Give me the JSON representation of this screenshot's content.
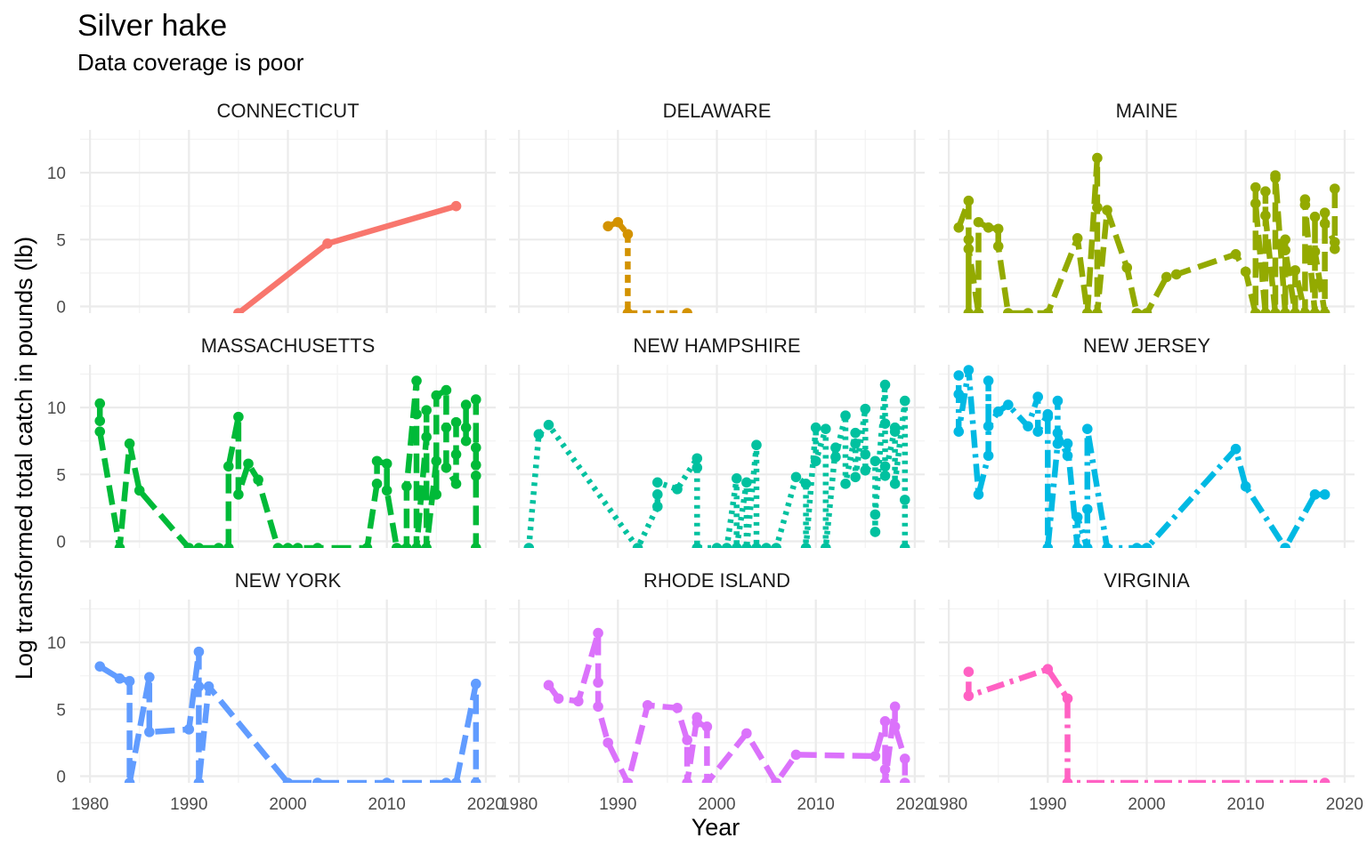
{
  "chart_data": {
    "type": "line",
    "title": "Silver hake",
    "subtitle": "Data coverage is poor",
    "xlabel": "Year",
    "ylabel": "Log transformed  total catch in pounds (lb)",
    "xlim": [
      1979,
      2021
    ],
    "ylim": [
      -0.5,
      13.2
    ],
    "x_ticks": [
      1980,
      1990,
      2000,
      2010,
      2020
    ],
    "x_tick_labels": [
      "1980",
      "1990",
      "2000",
      "2010",
      "2020"
    ],
    "y_ticks": [
      0,
      5,
      10
    ],
    "y_tick_labels": [
      "0",
      "5",
      "10"
    ],
    "grid": true,
    "legend": "none",
    "panels": [
      {
        "name": "CONNECTICUT",
        "color": "#F8766D",
        "dash": "solid",
        "points": [
          [
            1995,
            -0.5
          ],
          [
            2004,
            4.7
          ],
          [
            2017,
            7.5
          ]
        ]
      },
      {
        "name": "DELAWARE",
        "color": "#D39200",
        "dash": "dashed",
        "points": [
          [
            1989,
            6.0
          ],
          [
            1990,
            6.3
          ],
          [
            1991,
            5.4
          ],
          [
            1991,
            -0.5
          ],
          [
            1997,
            -0.5
          ]
        ]
      },
      {
        "name": "MAINE",
        "color": "#93AA00",
        "dash": "longdash",
        "points": [
          [
            1981,
            5.9
          ],
          [
            1982,
            7.9
          ],
          [
            1982,
            5.0
          ],
          [
            1982,
            -0.5
          ],
          [
            1982,
            4.3
          ],
          [
            1983,
            -0.5
          ],
          [
            1983,
            6.3
          ],
          [
            1984,
            5.9
          ],
          [
            1985,
            5.8
          ],
          [
            1985,
            4.5
          ],
          [
            1986,
            -0.5
          ],
          [
            1988,
            -0.5
          ],
          [
            1990,
            -0.5
          ],
          [
            1993,
            5.1
          ],
          [
            1994,
            -0.5
          ],
          [
            1995,
            11.1
          ],
          [
            1995,
            7.4
          ],
          [
            1995,
            -0.5
          ],
          [
            1996,
            7.2
          ],
          [
            1998,
            2.9
          ],
          [
            1999,
            -0.5
          ],
          [
            2000,
            -0.5
          ],
          [
            2002,
            2.2
          ],
          [
            2003,
            2.4
          ],
          [
            2009,
            3.9
          ],
          [
            2010,
            2.6
          ],
          [
            2011,
            -0.5
          ],
          [
            2011,
            8.9
          ],
          [
            2011,
            7.7
          ],
          [
            2012,
            -0.5
          ],
          [
            2012,
            8.6
          ],
          [
            2012,
            6.8
          ],
          [
            2013,
            -0.5
          ],
          [
            2013,
            9.6
          ],
          [
            2013,
            9.8
          ],
          [
            2014,
            -0.5
          ],
          [
            2014,
            5.0
          ],
          [
            2014,
            4.2
          ],
          [
            2015,
            -0.5
          ],
          [
            2015,
            2.7
          ],
          [
            2016,
            -0.5
          ],
          [
            2016,
            8.0
          ],
          [
            2016,
            7.6
          ],
          [
            2017,
            -0.5
          ],
          [
            2017,
            6.7
          ],
          [
            2017,
            4.1
          ],
          [
            2018,
            -0.5
          ],
          [
            2018,
            7.0
          ],
          [
            2018,
            6.2
          ],
          [
            2019,
            4.8
          ],
          [
            2019,
            4.3
          ],
          [
            2019,
            8.8
          ]
        ]
      },
      {
        "name": "MASSACHUSETTS",
        "color": "#00BA38",
        "dash": "longdash",
        "points": [
          [
            1981,
            10.3
          ],
          [
            1981,
            9.0
          ],
          [
            1981,
            8.2
          ],
          [
            1983,
            -0.5
          ],
          [
            1984,
            7.3
          ],
          [
            1985,
            3.8
          ],
          [
            1990,
            -0.5
          ],
          [
            1991,
            -0.5
          ],
          [
            1993,
            -0.5
          ],
          [
            1994,
            -0.5
          ],
          [
            1994,
            5.6
          ],
          [
            1995,
            9.3
          ],
          [
            1995,
            3.5
          ],
          [
            1996,
            5.8
          ],
          [
            1997,
            4.6
          ],
          [
            1999,
            -0.5
          ],
          [
            2000,
            -0.5
          ],
          [
            2001,
            -0.5
          ],
          [
            2003,
            -0.5
          ],
          [
            2008,
            -0.5
          ],
          [
            2009,
            4.3
          ],
          [
            2009,
            6.0
          ],
          [
            2010,
            5.8
          ],
          [
            2010,
            3.8
          ],
          [
            2011,
            -0.5
          ],
          [
            2012,
            -0.5
          ],
          [
            2012,
            4.1
          ],
          [
            2013,
            12.0
          ],
          [
            2013,
            9.5
          ],
          [
            2013,
            -0.5
          ],
          [
            2014,
            7.8
          ],
          [
            2014,
            9.8
          ],
          [
            2014,
            -0.5
          ],
          [
            2015,
            6.0
          ],
          [
            2015,
            3.5
          ],
          [
            2015,
            10.9
          ],
          [
            2016,
            11.3
          ],
          [
            2016,
            8.5
          ],
          [
            2016,
            5.5
          ],
          [
            2017,
            4.3
          ],
          [
            2017,
            6.5
          ],
          [
            2017,
            8.9
          ],
          [
            2018,
            8.5
          ],
          [
            2018,
            7.5
          ],
          [
            2018,
            10.2
          ],
          [
            2019,
            10.6
          ],
          [
            2019,
            7.0
          ],
          [
            2019,
            5.7
          ],
          [
            2019,
            4.9
          ],
          [
            2019,
            -0.5
          ]
        ]
      },
      {
        "name": "NEW HAMPSHIRE",
        "color": "#00C19F",
        "dash": "dotted",
        "points": [
          [
            1981,
            -0.5
          ],
          [
            1982,
            8.0
          ],
          [
            1983,
            8.7
          ],
          [
            1992,
            -0.5
          ],
          [
            1994,
            2.6
          ],
          [
            1994,
            3.5
          ],
          [
            1994,
            4.4
          ],
          [
            1996,
            3.9
          ],
          [
            1998,
            6.2
          ],
          [
            1998,
            5.5
          ],
          [
            1998,
            -0.5
          ],
          [
            2000,
            -0.5
          ],
          [
            2001,
            -0.5
          ],
          [
            2002,
            4.7
          ],
          [
            2002,
            -0.5
          ],
          [
            2003,
            4.4
          ],
          [
            2003,
            -0.5
          ],
          [
            2004,
            7.2
          ],
          [
            2004,
            -0.5
          ],
          [
            2005,
            -0.5
          ],
          [
            2006,
            -0.5
          ],
          [
            2008,
            4.8
          ],
          [
            2009,
            4.3
          ],
          [
            2009,
            -0.5
          ],
          [
            2010,
            8.5
          ],
          [
            2010,
            6.0
          ],
          [
            2011,
            8.4
          ],
          [
            2011,
            -0.5
          ],
          [
            2012,
            7.0
          ],
          [
            2012,
            6.3
          ],
          [
            2013,
            9.4
          ],
          [
            2013,
            4.3
          ],
          [
            2014,
            8.1
          ],
          [
            2014,
            7.3
          ],
          [
            2014,
            4.8
          ],
          [
            2015,
            9.9
          ],
          [
            2015,
            6.5
          ],
          [
            2015,
            5.3
          ],
          [
            2016,
            6.0
          ],
          [
            2016,
            0.7
          ],
          [
            2016,
            2.0
          ],
          [
            2017,
            11.7
          ],
          [
            2017,
            8.8
          ],
          [
            2017,
            5.6
          ],
          [
            2017,
            4.9
          ],
          [
            2018,
            8.5
          ],
          [
            2018,
            8.2
          ],
          [
            2018,
            4.3
          ],
          [
            2019,
            10.5
          ],
          [
            2019,
            3.1
          ],
          [
            2019,
            -0.5
          ]
        ]
      },
      {
        "name": "NEW JERSEY",
        "color": "#00B9E3",
        "dash": "dotdash",
        "points": [
          [
            1981,
            12.4
          ],
          [
            1981,
            11.0
          ],
          [
            1981,
            8.2
          ],
          [
            1982,
            12.8
          ],
          [
            1983,
            3.5
          ],
          [
            1984,
            6.4
          ],
          [
            1984,
            12.0
          ],
          [
            1984,
            8.6
          ],
          [
            1985,
            9.7
          ],
          [
            1986,
            10.2
          ],
          [
            1988,
            8.6
          ],
          [
            1989,
            10.8
          ],
          [
            1989,
            8.2
          ],
          [
            1990,
            9.5
          ],
          [
            1990,
            9.3
          ],
          [
            1990,
            -0.5
          ],
          [
            1991,
            7.3
          ],
          [
            1991,
            10.5
          ],
          [
            1991,
            8.1
          ],
          [
            1992,
            6.4
          ],
          [
            1992,
            7.3
          ],
          [
            1993,
            -0.5
          ],
          [
            1993,
            1.8
          ],
          [
            1994,
            -0.5
          ],
          [
            1994,
            2.4
          ],
          [
            1994,
            8.4
          ],
          [
            1996,
            -0.5
          ],
          [
            1999,
            -0.5
          ],
          [
            2000,
            -0.5
          ],
          [
            2009,
            6.9
          ],
          [
            2010,
            4.1
          ],
          [
            2014,
            -0.5
          ],
          [
            2017,
            3.5
          ],
          [
            2018,
            3.5
          ]
        ]
      },
      {
        "name": "NEW YORK",
        "color": "#619CFF",
        "dash": "longdash",
        "points": [
          [
            1981,
            8.2
          ],
          [
            1983,
            7.3
          ],
          [
            1984,
            7.1
          ],
          [
            1984,
            -0.5
          ],
          [
            1986,
            7.4
          ],
          [
            1986,
            3.3
          ],
          [
            1990,
            3.5
          ],
          [
            1991,
            9.3
          ],
          [
            1991,
            6.7
          ],
          [
            1991,
            -0.5
          ],
          [
            1992,
            6.7
          ],
          [
            2000,
            -0.5
          ],
          [
            2003,
            -0.5
          ],
          [
            2010,
            -0.5
          ],
          [
            2016,
            -0.5
          ],
          [
            2017,
            -0.5
          ],
          [
            2019,
            6.9
          ],
          [
            2019,
            -0.5
          ]
        ]
      },
      {
        "name": "RHODE ISLAND",
        "color": "#DB72FB",
        "dash": "longdash",
        "points": [
          [
            1983,
            6.8
          ],
          [
            1984,
            5.8
          ],
          [
            1986,
            5.6
          ],
          [
            1988,
            10.7
          ],
          [
            1988,
            7.0
          ],
          [
            1988,
            5.2
          ],
          [
            1989,
            2.5
          ],
          [
            1991,
            -0.5
          ],
          [
            1993,
            5.3
          ],
          [
            1996,
            5.1
          ],
          [
            1997,
            2.7
          ],
          [
            1997,
            -0.5
          ],
          [
            1998,
            4.4
          ],
          [
            1998,
            4.0
          ],
          [
            1999,
            3.7
          ],
          [
            1999,
            -0.5
          ],
          [
            2003,
            3.2
          ],
          [
            2006,
            -0.5
          ],
          [
            2008,
            1.6
          ],
          [
            2016,
            1.5
          ],
          [
            2017,
            4.1
          ],
          [
            2017,
            0.5
          ],
          [
            2017,
            -0.5
          ],
          [
            2018,
            5.2
          ],
          [
            2018,
            3.7
          ],
          [
            2019,
            1.3
          ],
          [
            2019,
            -0.5
          ]
        ]
      },
      {
        "name": "VIRGINIA",
        "color": "#FF61C3",
        "dash": "dotdash",
        "points": [
          [
            1982,
            7.8
          ],
          [
            1982,
            6.0
          ],
          [
            1990,
            8.0
          ],
          [
            1992,
            5.8
          ],
          [
            1992,
            -0.5
          ],
          [
            2018,
            -0.5
          ]
        ]
      }
    ]
  }
}
